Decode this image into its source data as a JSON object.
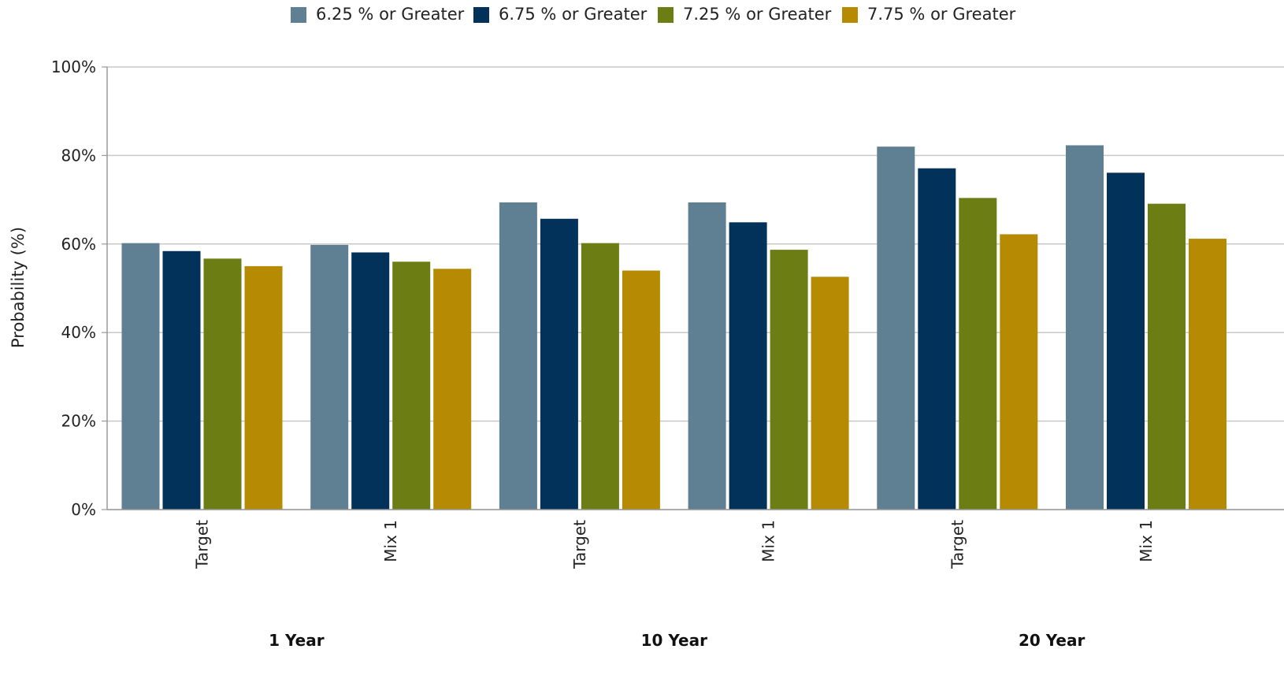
{
  "chart_data": {
    "type": "bar",
    "ylabel": "Probability (%)",
    "ylim": [
      0,
      100
    ],
    "y_ticks": [
      "0%",
      "20%",
      "40%",
      "60%",
      "80%",
      "100%"
    ],
    "y_tick_values": [
      0,
      20,
      40,
      60,
      80,
      100
    ],
    "grid": true,
    "legend_position": "top",
    "groups": [
      {
        "label": "1 Year",
        "categories": [
          "Target",
          "Mix 1"
        ]
      },
      {
        "label": "10 Year",
        "categories": [
          "Target",
          "Mix 1"
        ]
      },
      {
        "label": "20 Year",
        "categories": [
          "Target",
          "Mix 1"
        ]
      }
    ],
    "categories": [
      "Target",
      "Mix 1",
      "Target",
      "Mix 1",
      "Target",
      "Mix 1"
    ],
    "series": [
      {
        "name": "6.25 % or Greater",
        "color": "#5f7f92",
        "values": [
          60.2,
          59.8,
          69.4,
          69.4,
          82.0,
          82.3
        ]
      },
      {
        "name": "6.75 % or Greater",
        "color": "#02325a",
        "values": [
          58.4,
          58.1,
          65.7,
          64.9,
          77.1,
          76.1
        ]
      },
      {
        "name": "7.25 % or Greater",
        "color": "#6b7d13",
        "values": [
          56.7,
          56.0,
          60.2,
          58.7,
          70.4,
          69.1
        ]
      },
      {
        "name": "7.75 % or Greater",
        "color": "#b78a03",
        "values": [
          55.0,
          54.4,
          54.0,
          52.6,
          62.2,
          61.2
        ]
      }
    ]
  }
}
